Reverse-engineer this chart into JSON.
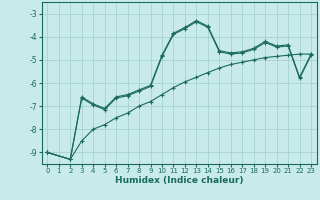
{
  "xlabel": "Humidex (Indice chaleur)",
  "background_color": "#c8eaea",
  "grid_color": "#a0cccc",
  "line_color": "#1a6b5a",
  "xlim": [
    -0.5,
    23.5
  ],
  "ylim": [
    -9.5,
    -2.5
  ],
  "yticks": [
    -9,
    -8,
    -7,
    -6,
    -5,
    -4,
    -3
  ],
  "xticks": [
    0,
    1,
    2,
    3,
    4,
    5,
    6,
    7,
    8,
    9,
    10,
    11,
    12,
    13,
    14,
    15,
    16,
    17,
    18,
    19,
    20,
    21,
    22,
    23
  ],
  "series1_x": [
    0,
    2,
    3,
    4,
    5,
    6,
    7,
    8,
    9,
    10,
    11,
    12,
    13,
    14,
    15,
    16,
    17,
    18,
    19,
    20,
    21,
    22,
    23
  ],
  "series1_y": [
    -9.0,
    -9.3,
    -6.6,
    -6.9,
    -7.1,
    -6.6,
    -6.5,
    -6.3,
    -6.1,
    -4.8,
    -3.85,
    -3.6,
    -3.3,
    -3.55,
    -4.6,
    -4.7,
    -4.65,
    -4.5,
    -4.2,
    -4.4,
    -4.35,
    -5.75,
    -4.75
  ],
  "series2_x": [
    0,
    2,
    3,
    4,
    5,
    6,
    7,
    8,
    9,
    10,
    11,
    12,
    13,
    14,
    15,
    16,
    17,
    18,
    19,
    20,
    21,
    22,
    23
  ],
  "series2_y": [
    -9.0,
    -9.3,
    -6.65,
    -6.95,
    -7.15,
    -6.65,
    -6.55,
    -6.35,
    -6.15,
    -4.85,
    -3.9,
    -3.65,
    -3.35,
    -3.6,
    -4.65,
    -4.75,
    -4.7,
    -4.55,
    -4.25,
    -4.45,
    -4.4,
    -5.8,
    -4.8
  ],
  "series3_x": [
    0,
    2,
    3,
    4,
    5,
    6,
    7,
    8,
    9,
    10,
    11,
    12,
    13,
    14,
    15,
    16,
    17,
    18,
    19,
    20,
    21,
    22,
    23
  ],
  "series3_y": [
    -9.0,
    -9.3,
    -8.5,
    -8.0,
    -7.8,
    -7.5,
    -7.3,
    -7.0,
    -6.8,
    -6.5,
    -6.2,
    -5.95,
    -5.75,
    -5.55,
    -5.35,
    -5.2,
    -5.1,
    -5.0,
    -4.9,
    -4.85,
    -4.8,
    -4.75,
    -4.75
  ]
}
